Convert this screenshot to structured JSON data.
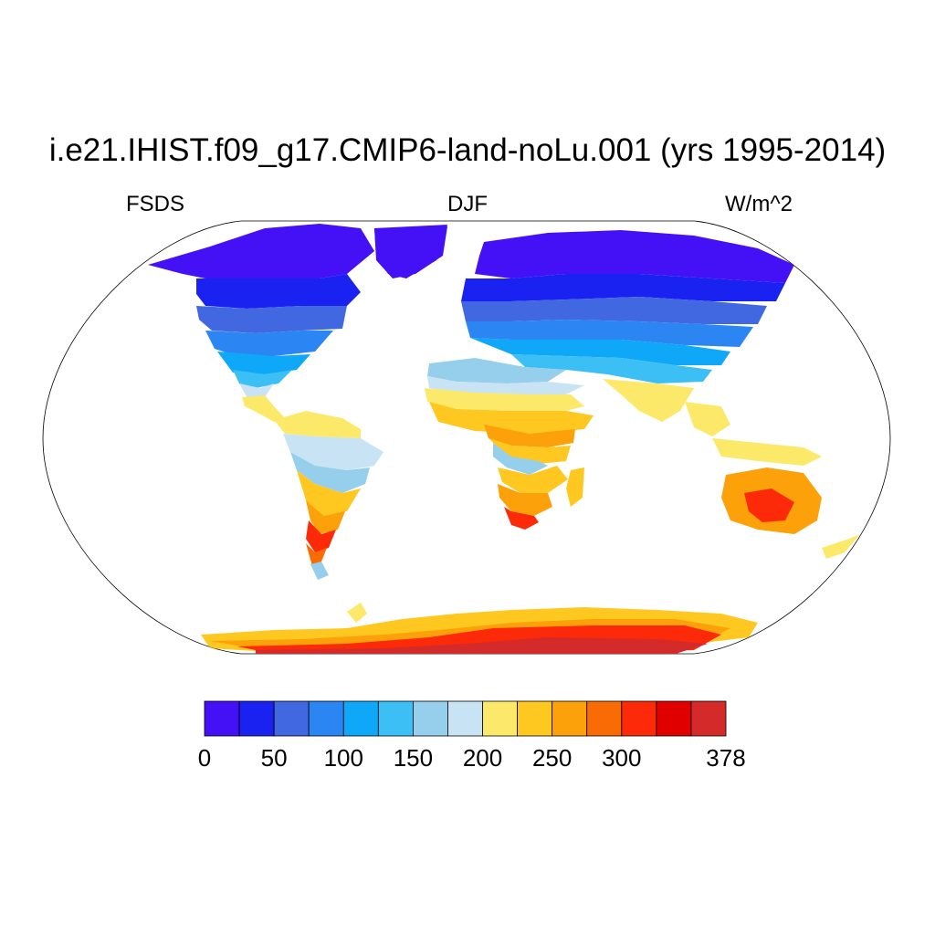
{
  "title": "i.e21.IHIST.f09_g17.CMIP6-land-noLu.001 (yrs 1995-2014)",
  "left_label": "FSDS",
  "center_label": "DJF",
  "right_label": "W/m^2",
  "map": {
    "projection": "robinson",
    "variable": "FSDS",
    "season": "DJF",
    "units": "W/m^2"
  },
  "colorbar": {
    "colors": [
      "#4410f5",
      "#1a22f2",
      "#4168e0",
      "#2b86f4",
      "#0fa7f7",
      "#3cbff4",
      "#96cfec",
      "#c8e4f4",
      "#fde969",
      "#fec820",
      "#fca10a",
      "#f96c05",
      "#fc2a08",
      "#e10000",
      "#d52a2a"
    ],
    "ticks": [
      {
        "label": "0",
        "index": 0
      },
      {
        "label": "50",
        "index": 2
      },
      {
        "label": "100",
        "index": 4
      },
      {
        "label": "150",
        "index": 6
      },
      {
        "label": "200",
        "index": 8
      },
      {
        "label": "250",
        "index": 10
      },
      {
        "label": "300",
        "index": 12
      },
      {
        "label": "378",
        "index": 15
      }
    ]
  }
}
